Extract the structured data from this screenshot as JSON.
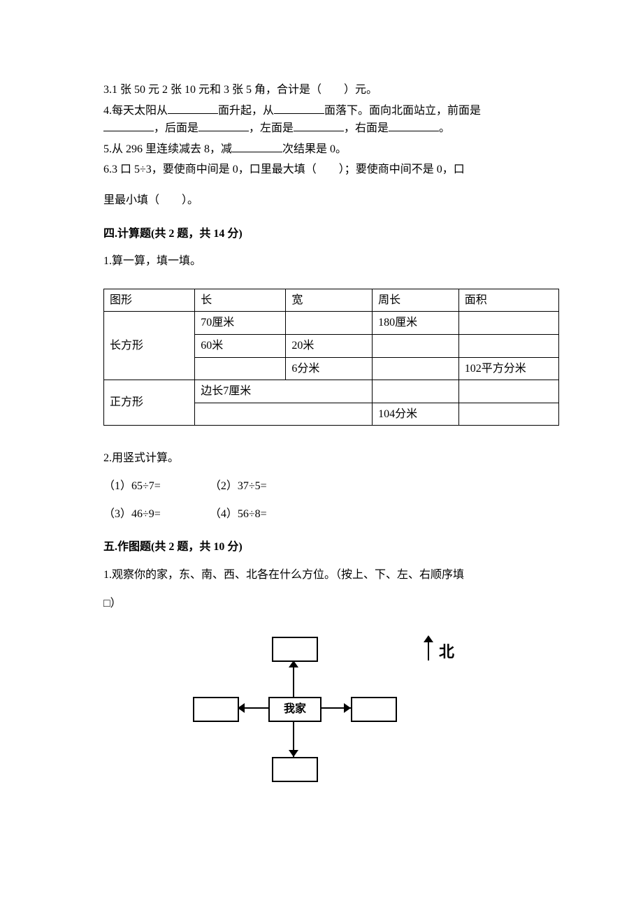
{
  "q3": "3.1 张 50 元 2 张 10 元和 3 张 5 角，合计是（　　）元。",
  "q4_a": "4.每天太阳从",
  "q4_b": "面升起，从",
  "q4_c": "面落下。面向北面站立，前面是",
  "q4_d": "，后面是",
  "q4_e": "，左面是",
  "q4_f": "，右面是",
  "q4_g": "。",
  "q5_a": "5.从 296 里连续减去 8，减",
  "q5_b": "次结果是 0。",
  "q6_a": "6.3 口 5÷3，要使商中间是 0，口里最大填（　　）；要使商中间不是 0，口",
  "q6_b": "里最小填（　　）。",
  "sec4": "四.计算题(共 2 题，共 14 分)",
  "sec4_q1": "1.算一算，填一填。",
  "table": {
    "headers": [
      "图形",
      "长",
      "宽",
      "周长",
      "面积"
    ],
    "rows": [
      [
        "长方形",
        "70厘米",
        "",
        "180厘米",
        ""
      ],
      [
        "",
        "60米",
        "20米",
        "",
        ""
      ],
      [
        "",
        "",
        "6分米",
        "",
        "102平方分米"
      ],
      [
        "正方形",
        "边长7厘米",
        "__MERGE__",
        "",
        ""
      ],
      [
        "",
        "",
        "__MERGE__",
        "104分米",
        ""
      ]
    ],
    "col_widths": [
      "20%",
      "20%",
      "19%",
      "19%",
      "22%"
    ]
  },
  "sec4_q2": "2.用竖式计算。",
  "calc": {
    "r1a": "（1）65÷7=",
    "r1b": "（2）37÷5=",
    "r2a": "（3）46÷9=",
    "r2b": "（4）56÷8="
  },
  "sec5": "五.作图题(共 2 题，共 10 分)",
  "sec5_q1_a": "1.观察你的家，东、南、西、北各在什么方位。（按上、下、左、右顺序填",
  "sec5_q1_b": "□）",
  "diagram": {
    "center_label": "我家",
    "north_label": "北"
  }
}
